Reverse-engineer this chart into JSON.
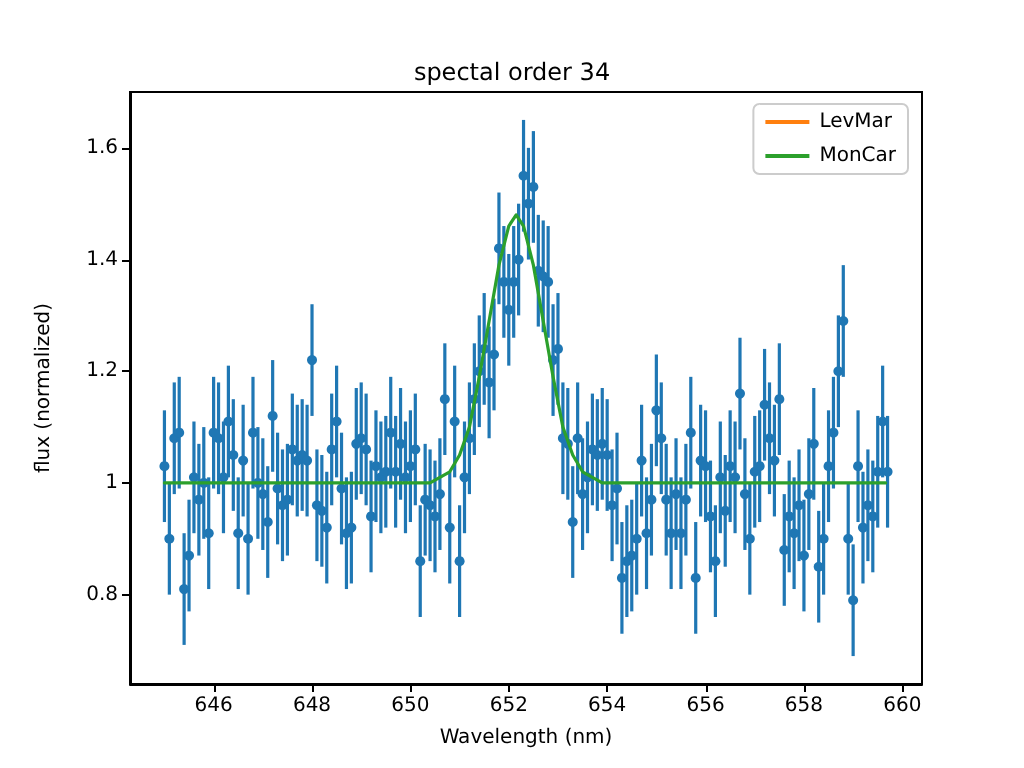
{
  "chart_data": {
    "type": "scatter",
    "title": "spectal order 34",
    "xlabel": "Wavelength (nm)",
    "ylabel": "flux (normalized)",
    "xlim": [
      644.3,
      660.4
    ],
    "xticks": [
      646,
      648,
      650,
      652,
      654,
      656,
      658,
      660
    ],
    "ylim": [
      0.64,
      1.7
    ],
    "yticks": [
      0.8,
      1.0,
      1.2,
      1.4,
      1.6
    ],
    "grid": false,
    "legend": "top right",
    "series": [
      {
        "marker": "circle",
        "color": "#1f77b4",
        "x": [
          645.0,
          645.1,
          645.2,
          645.3,
          645.4,
          645.5,
          645.6,
          645.7,
          645.8,
          645.9,
          646.0,
          646.1,
          646.2,
          646.3,
          646.4,
          646.5,
          646.6,
          646.7,
          646.8,
          646.9,
          647.0,
          647.1,
          647.2,
          647.3,
          647.4,
          647.5,
          647.6,
          647.7,
          647.8,
          647.9,
          648.0,
          648.1,
          648.2,
          648.3,
          648.4,
          648.5,
          648.6,
          648.7,
          648.8,
          648.9,
          649.0,
          649.1,
          649.2,
          649.3,
          649.4,
          649.5,
          649.6,
          649.7,
          649.8,
          649.9,
          650.0,
          650.1,
          650.2,
          650.3,
          650.4,
          650.5,
          650.6,
          650.7,
          650.8,
          650.9,
          651.0,
          651.1,
          651.2,
          651.3,
          651.4,
          651.5,
          651.6,
          651.7,
          651.8,
          651.9,
          652.0,
          652.1,
          652.2,
          652.3,
          652.4,
          652.5,
          652.6,
          652.7,
          652.8,
          652.9,
          653.0,
          653.1,
          653.2,
          653.3,
          653.4,
          653.5,
          653.6,
          653.7,
          653.8,
          653.9,
          654.0,
          654.1,
          654.2,
          654.3,
          654.4,
          654.5,
          654.6,
          654.7,
          654.8,
          654.9,
          655.0,
          655.1,
          655.2,
          655.3,
          655.4,
          655.5,
          655.6,
          655.7,
          655.8,
          655.9,
          656.0,
          656.1,
          656.2,
          656.3,
          656.4,
          656.5,
          656.6,
          656.7,
          656.8,
          656.9,
          657.0,
          657.1,
          657.2,
          657.3,
          657.4,
          657.5,
          657.6,
          657.7,
          657.8,
          657.9,
          658.0,
          658.1,
          658.2,
          658.3,
          658.4,
          658.5,
          658.6,
          658.7,
          658.8,
          658.9,
          659.0,
          659.1,
          659.2,
          659.3,
          659.4,
          659.5,
          659.6,
          659.7
        ],
        "values": [
          1.03,
          0.9,
          1.08,
          1.09,
          0.81,
          0.87,
          1.01,
          0.97,
          1.0,
          0.91,
          1.09,
          1.08,
          1.01,
          1.11,
          1.05,
          0.91,
          1.04,
          0.9,
          1.09,
          1.0,
          0.98,
          0.93,
          1.12,
          0.99,
          0.96,
          0.97,
          1.06,
          1.04,
          1.05,
          1.04,
          1.22,
          0.96,
          0.95,
          0.92,
          1.06,
          1.11,
          0.99,
          0.91,
          0.92,
          1.07,
          1.08,
          1.06,
          0.94,
          1.03,
          1.01,
          1.02,
          1.09,
          1.02,
          1.07,
          1.01,
          1.03,
          1.06,
          0.86,
          0.97,
          0.96,
          0.94,
          0.98,
          1.15,
          0.92,
          1.11,
          0.86,
          1.01,
          1.08,
          1.15,
          1.2,
          1.24,
          1.18,
          1.23,
          1.42,
          1.36,
          1.31,
          1.36,
          1.4,
          1.55,
          1.5,
          1.53,
          1.38,
          1.37,
          1.36,
          1.22,
          1.24,
          1.08,
          1.07,
          0.93,
          1.08,
          0.98,
          1.01,
          1.06,
          1.05,
          1.07,
          1.05,
          0.96,
          0.99,
          0.83,
          0.86,
          0.87,
          0.9,
          1.04,
          0.91,
          0.97,
          1.13,
          1.08,
          0.97,
          0.91,
          0.98,
          0.91,
          0.97,
          1.09,
          0.83,
          1.04,
          1.03,
          0.94,
          0.86,
          1.01,
          0.95,
          1.03,
          1.01,
          1.16,
          0.98,
          0.9,
          1.02,
          1.03,
          1.14,
          1.08,
          1.04,
          1.15,
          0.88,
          0.94,
          0.91,
          0.96,
          0.87,
          0.98,
          1.07,
          0.85,
          0.9,
          1.03,
          1.09,
          1.2,
          1.29,
          0.9,
          0.79,
          1.03,
          0.92,
          0.96,
          0.94,
          1.02,
          1.11,
          1.02
        ],
        "errors": [
          0.1,
          0.1,
          0.1,
          0.1,
          0.1,
          0.1,
          0.1,
          0.1,
          0.1,
          0.1,
          0.1,
          0.1,
          0.1,
          0.1,
          0.1,
          0.1,
          0.1,
          0.1,
          0.1,
          0.1,
          0.1,
          0.1,
          0.1,
          0.1,
          0.1,
          0.1,
          0.1,
          0.1,
          0.1,
          0.1,
          0.1,
          0.1,
          0.1,
          0.1,
          0.1,
          0.1,
          0.1,
          0.1,
          0.1,
          0.1,
          0.1,
          0.1,
          0.1,
          0.1,
          0.1,
          0.1,
          0.1,
          0.1,
          0.1,
          0.1,
          0.1,
          0.1,
          0.1,
          0.1,
          0.1,
          0.1,
          0.1,
          0.1,
          0.1,
          0.1,
          0.1,
          0.1,
          0.1,
          0.1,
          0.1,
          0.1,
          0.1,
          0.1,
          0.1,
          0.1,
          0.1,
          0.1,
          0.1,
          0.1,
          0.1,
          0.1,
          0.1,
          0.1,
          0.1,
          0.1,
          0.1,
          0.1,
          0.1,
          0.1,
          0.1,
          0.1,
          0.1,
          0.1,
          0.1,
          0.1,
          0.1,
          0.1,
          0.1,
          0.1,
          0.1,
          0.1,
          0.1,
          0.1,
          0.1,
          0.1,
          0.1,
          0.1,
          0.1,
          0.1,
          0.1,
          0.1,
          0.1,
          0.1,
          0.1,
          0.1,
          0.1,
          0.1,
          0.1,
          0.1,
          0.1,
          0.1,
          0.1,
          0.1,
          0.1,
          0.1,
          0.1,
          0.1,
          0.1,
          0.1,
          0.1,
          0.1,
          0.1,
          0.1,
          0.1,
          0.1,
          0.1,
          0.1,
          0.1,
          0.1,
          0.1,
          0.1,
          0.1,
          0.1,
          0.1,
          0.1,
          0.1,
          0.1,
          0.1,
          0.1,
          0.1,
          0.1,
          0.1,
          0.1
        ]
      },
      {
        "type": "line",
        "name": "LevMar",
        "color": "#ff7f0e"
      },
      {
        "type": "line",
        "name": "MonCar",
        "color": "#2ca02c",
        "x": [
          645.0,
          650.0,
          650.4,
          650.6,
          650.8,
          651.0,
          651.2,
          651.4,
          651.6,
          651.8,
          652.0,
          652.15,
          652.3,
          652.5,
          652.7,
          652.9,
          653.1,
          653.3,
          653.5,
          653.7,
          653.9,
          654.3,
          659.66
        ],
        "values": [
          1.0,
          1.0,
          1.0,
          1.01,
          1.02,
          1.05,
          1.1,
          1.19,
          1.29,
          1.39,
          1.46,
          1.48,
          1.46,
          1.39,
          1.29,
          1.19,
          1.1,
          1.05,
          1.02,
          1.01,
          1.0,
          1.0,
          1.0
        ]
      }
    ]
  }
}
